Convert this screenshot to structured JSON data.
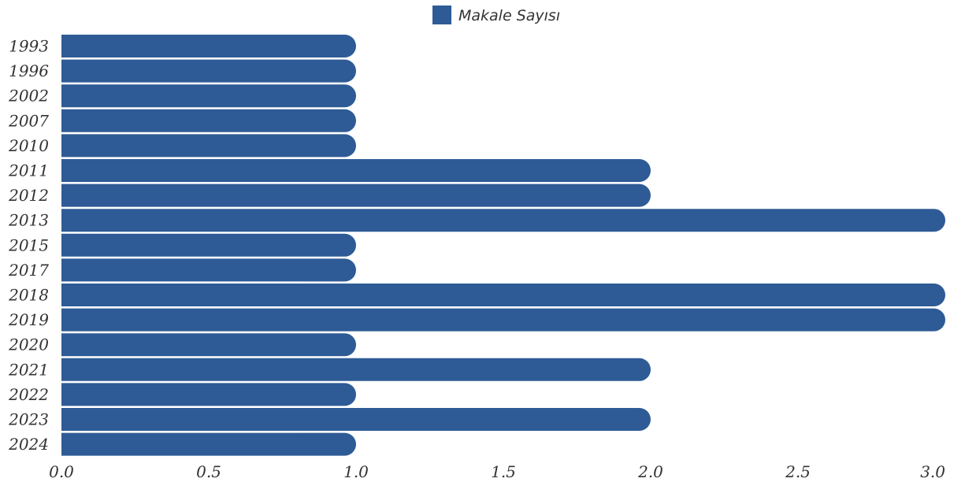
{
  "chart_data": {
    "type": "bar",
    "orientation": "horizontal",
    "title": "",
    "xlabel": "",
    "ylabel": "",
    "categories": [
      "1993",
      "1996",
      "2002",
      "2007",
      "2010",
      "2011",
      "2012",
      "2013",
      "2015",
      "2017",
      "2018",
      "2019",
      "2020",
      "2021",
      "2022",
      "2023",
      "2024"
    ],
    "series": [
      {
        "name": "Makale Sayısı",
        "color": "#2e5b95",
        "values": [
          1,
          1,
          1,
          1,
          1,
          2,
          2,
          3,
          1,
          1,
          3,
          3,
          1,
          2,
          1,
          2,
          1
        ]
      }
    ],
    "xlim": [
      0,
      3.0
    ],
    "x_ticks": [
      "0.0",
      "0.5",
      "1.0",
      "1.5",
      "2.0",
      "2.5",
      "3.0"
    ],
    "grid": false,
    "legend": {
      "placement": "top-center",
      "label": "Makale Sayısı"
    }
  }
}
